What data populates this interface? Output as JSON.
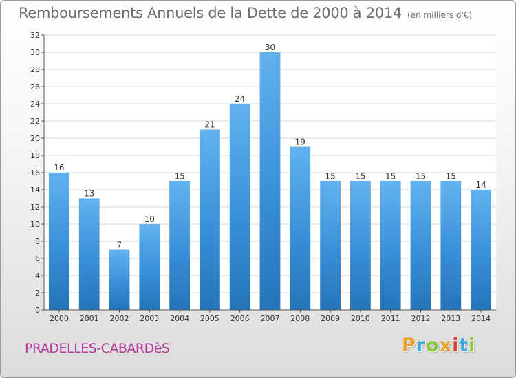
{
  "chart_data": {
    "type": "bar",
    "title": "Remboursements Annuels de la Dette de 2000 à 2014",
    "unit_note": "(en milliers d'€)",
    "categories": [
      "2000",
      "2001",
      "2002",
      "2003",
      "2004",
      "2005",
      "2006",
      "2007",
      "2008",
      "2009",
      "2010",
      "2011",
      "2012",
      "2013",
      "2014"
    ],
    "values": [
      16,
      13,
      7,
      10,
      15,
      21,
      24,
      30,
      19,
      15,
      15,
      15,
      15,
      15,
      14
    ],
    "data_labels": [
      "16",
      "13",
      "7",
      "10",
      "15",
      "21",
      "24",
      "30",
      "19",
      "15",
      "15",
      "15",
      "15",
      "15",
      "14"
    ],
    "ylim": [
      0,
      32
    ],
    "yticks": [
      0,
      2,
      4,
      6,
      8,
      10,
      12,
      14,
      16,
      18,
      20,
      22,
      24,
      26,
      28,
      30,
      32
    ],
    "xlabel": "",
    "ylabel": "",
    "grid": "horizontal",
    "bar_color": "#3a8fd8",
    "bar_color_light": "#62b2ee",
    "bar_color_dark": "#2574b8"
  },
  "footer": {
    "place_name": "PRADELLES-CABARDèS",
    "brand": {
      "letters": [
        "P",
        "r",
        "o",
        "x",
        "i",
        "t",
        "i"
      ],
      "colors": [
        "#e8a32c",
        "#3fa8d9",
        "#8cc63f",
        "#e8a32c",
        "#d9453a",
        "#3fa8d9",
        "#8cc63f"
      ]
    }
  }
}
